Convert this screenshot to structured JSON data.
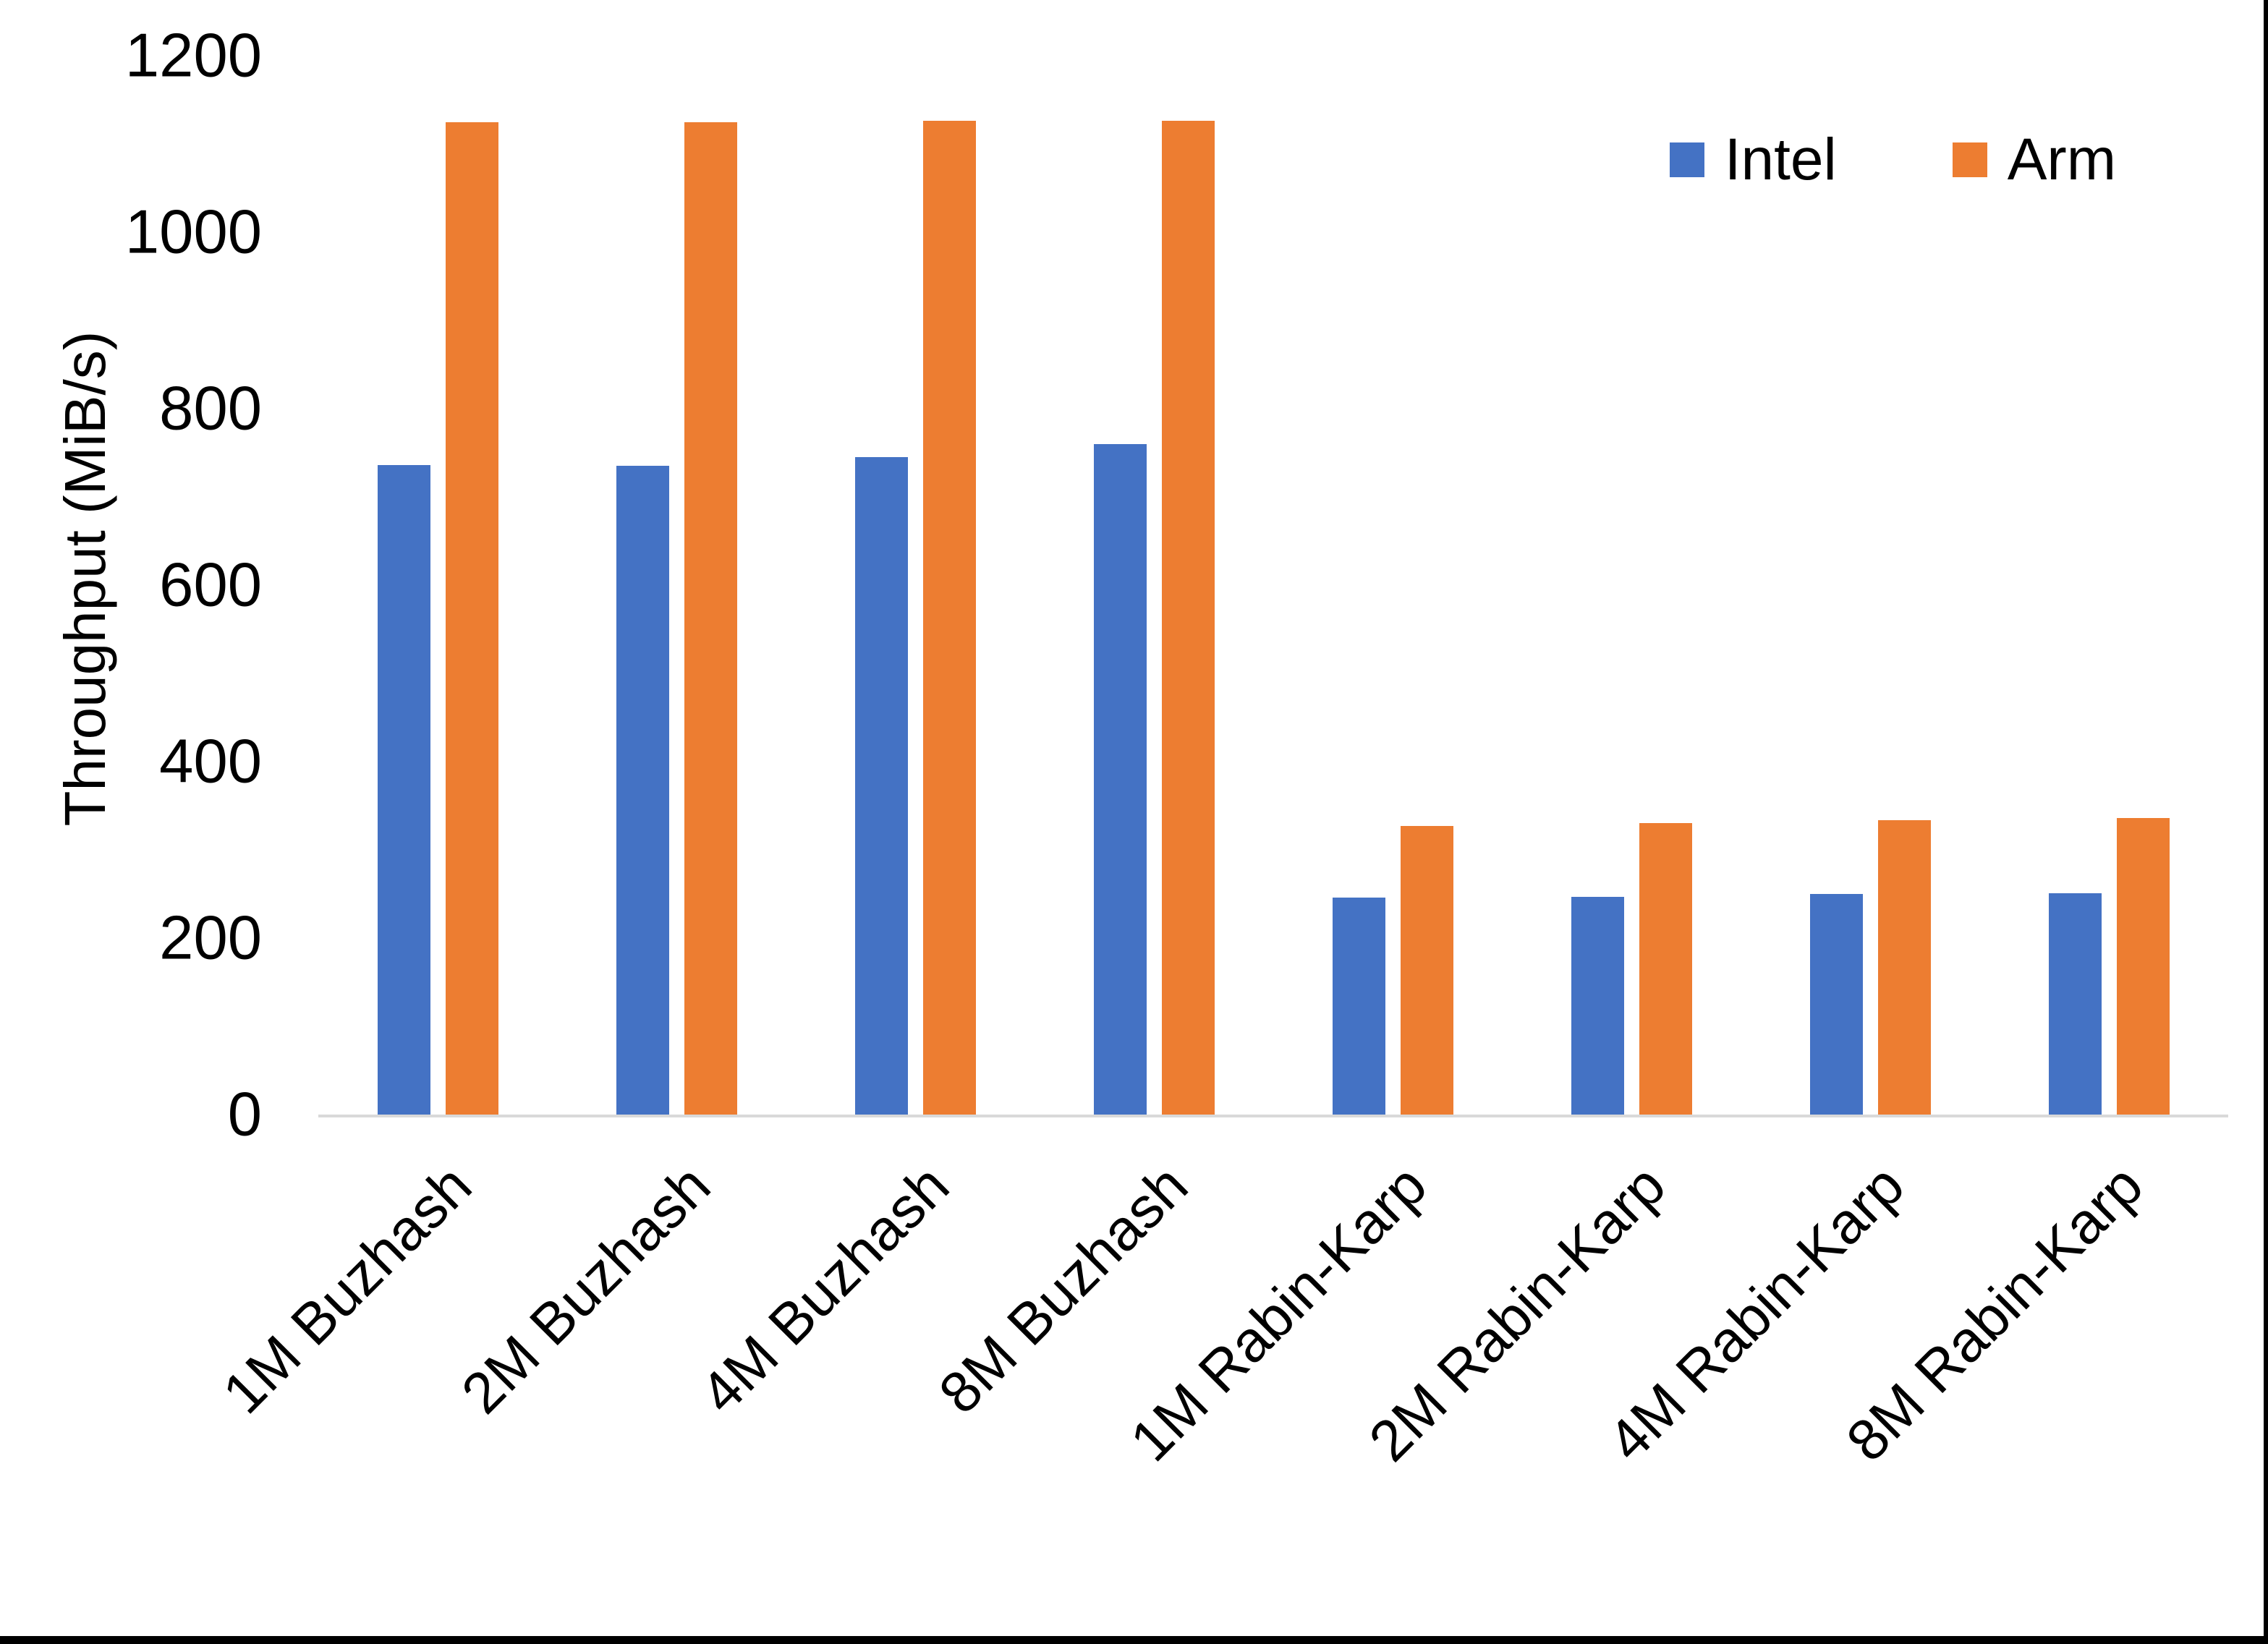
{
  "colors": {
    "background": "#ffffff",
    "axis_line": "#D9D9D9",
    "text": "#000000",
    "intel": "#4472C4",
    "arm": "#ED7D31",
    "edge_border": "#000000"
  },
  "legend": {
    "items": [
      {
        "label": "Intel",
        "color": "#4472C4"
      },
      {
        "label": "Arm",
        "color": "#ED7D31"
      }
    ]
  },
  "chart_data": {
    "type": "bar",
    "title": "",
    "xlabel": "",
    "ylabel": "Throughput (MiB/s)",
    "ylim": [
      0,
      1200
    ],
    "yticks": [
      0,
      200,
      400,
      600,
      800,
      1000,
      1200
    ],
    "grid": false,
    "legend_position": "top-right",
    "categories": [
      "1M Buzhash",
      "2M Buzhash",
      "4M Buzhash",
      "8M Buzhash",
      "1M Rabin-Karp",
      "2M Rabin-Karp",
      "4M Rabin-Karp",
      "8M Rabin-Karp"
    ],
    "series": [
      {
        "name": "Intel",
        "color": "#4472C4",
        "values": [
          736,
          735,
          745,
          760,
          246,
          247,
          250,
          251
        ]
      },
      {
        "name": "Arm",
        "color": "#ED7D31",
        "values": [
          1125,
          1125,
          1126,
          1126,
          327,
          330,
          334,
          336
        ]
      }
    ]
  }
}
